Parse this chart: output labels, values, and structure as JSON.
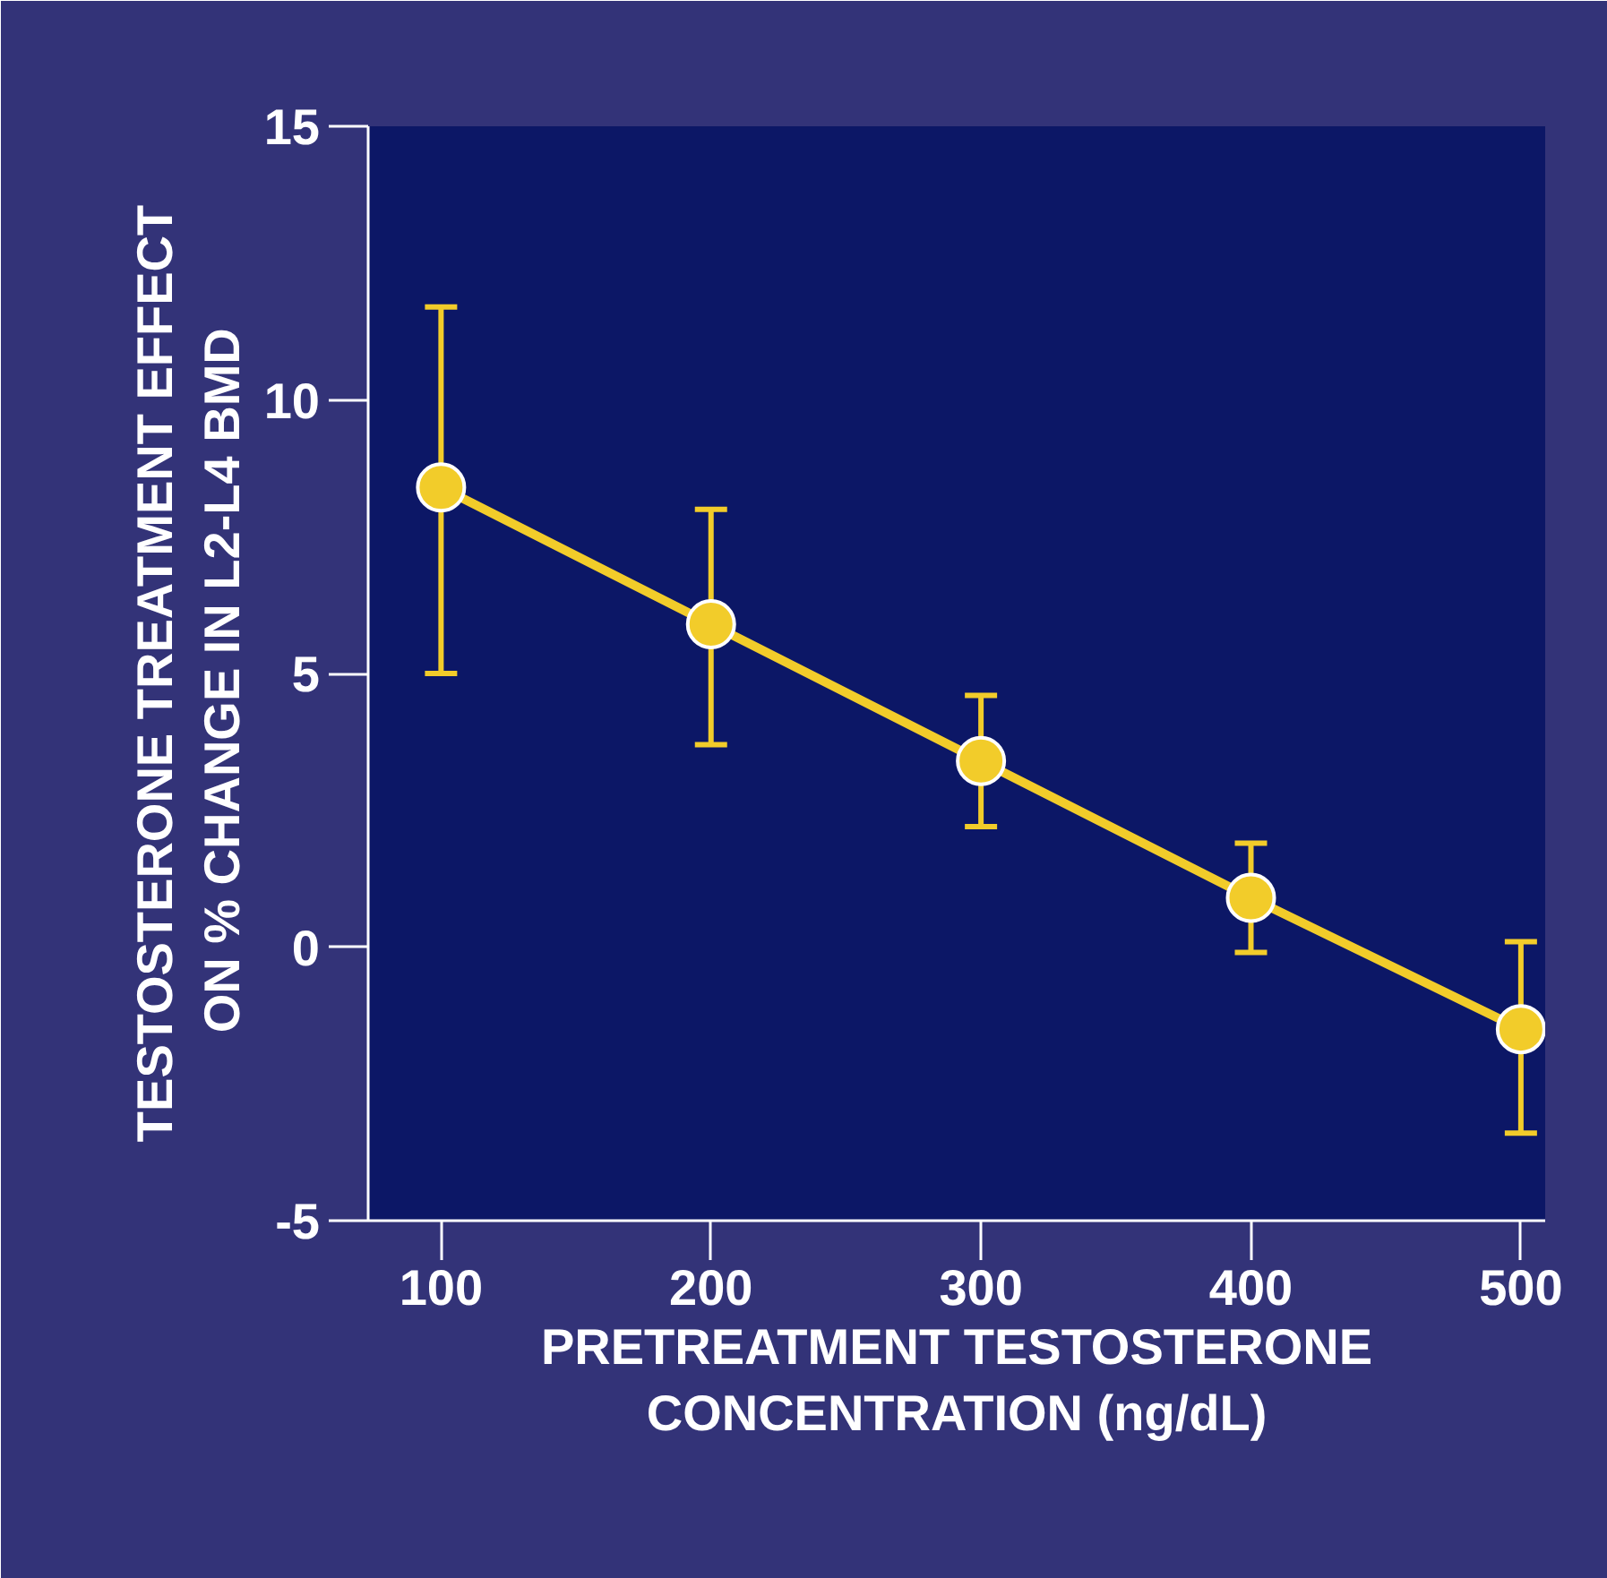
{
  "chart_data": {
    "type": "line",
    "xlabel": "PRETREATMENT TESTOSTERONE\nCONCENTRATION (ng/dL)",
    "ylabel": "TESTOSTERONE TREATMENT EFFECT\nON % CHANGE IN L2-L4  BMD",
    "x": [
      100,
      200,
      300,
      400,
      500
    ],
    "series": [
      {
        "color": "#f2cc2a",
        "values": [
          8.4,
          5.9,
          3.4,
          0.9,
          -1.5
        ],
        "errors": [
          [
            5.0,
            11.7
          ],
          [
            3.7,
            8.0
          ],
          [
            2.2,
            4.6
          ],
          [
            -0.1,
            1.9
          ],
          [
            -3.4,
            0.1
          ]
        ]
      }
    ],
    "xlim": [
      73,
      509
    ],
    "ylim": [
      -5,
      15
    ],
    "xticks": [
      100,
      200,
      300,
      400,
      500
    ],
    "yticks": [
      -5,
      0,
      5,
      10,
      15
    ],
    "marker": "circle",
    "line_style": "solid"
  }
}
